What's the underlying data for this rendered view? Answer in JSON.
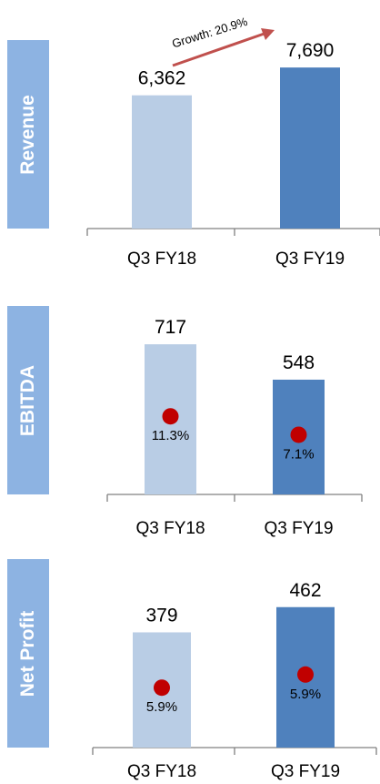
{
  "colors": {
    "label_bg": "#8db3e2",
    "bar_prev": "#b9cde5",
    "bar_curr": "#4f81bd",
    "marker": "#c00000",
    "arrow": "#c0504d"
  },
  "growth_label": "Growth: 20.9%",
  "chart_data": [
    {
      "type": "bar",
      "title": "Revenue",
      "categories": [
        "Q3 FY18",
        "Q3 FY19"
      ],
      "values": [
        6362,
        7690
      ],
      "value_labels": [
        "6,362",
        "7,690"
      ],
      "ylim": [
        0,
        9000
      ]
    },
    {
      "type": "bar",
      "title": "EBITDA",
      "categories": [
        "Q3 FY18",
        "Q3 FY19"
      ],
      "values": [
        717,
        548
      ],
      "value_labels": [
        "717",
        "548"
      ],
      "margins": [
        11.3,
        7.1
      ],
      "margin_labels": [
        "11.3%",
        "7.1%"
      ],
      "ylim": [
        0,
        900
      ]
    },
    {
      "type": "bar",
      "title": "Net Profit",
      "categories": [
        "Q3 FY18",
        "Q3 FY19"
      ],
      "values": [
        379,
        462
      ],
      "value_labels": [
        "379",
        "462"
      ],
      "margins": [
        5.9,
        5.9
      ],
      "margin_labels": [
        "5.9%",
        "5.9%"
      ],
      "ylim": [
        0,
        620
      ]
    }
  ]
}
